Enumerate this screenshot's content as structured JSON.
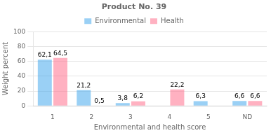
{
  "chart_data": {
    "type": "bar",
    "title": "Product No. 39",
    "xlabel": "Environmental and health score",
    "ylabel": "Weight percent",
    "categories": [
      "1",
      "2",
      "3",
      "4",
      "5",
      "ND"
    ],
    "series": [
      {
        "name": "Environmental",
        "values": [
          62.1,
          21.2,
          3.8,
          0.0,
          6.3,
          6.6
        ],
        "value_labels": [
          "62,1",
          "21,2",
          "3,8",
          null,
          "6,3",
          "6,6"
        ]
      },
      {
        "name": "Health",
        "values": [
          64.5,
          0.5,
          6.2,
          22.2,
          0.0,
          6.6
        ],
        "value_labels": [
          "64,5",
          "0,5",
          "6,2",
          "22,2",
          null,
          "6,6"
        ]
      }
    ],
    "ylim": [
      0,
      100
    ],
    "yticks": [
      0,
      20,
      40,
      60,
      80,
      100
    ],
    "grid": "y",
    "legend": "top",
    "data_labels": true
  }
}
